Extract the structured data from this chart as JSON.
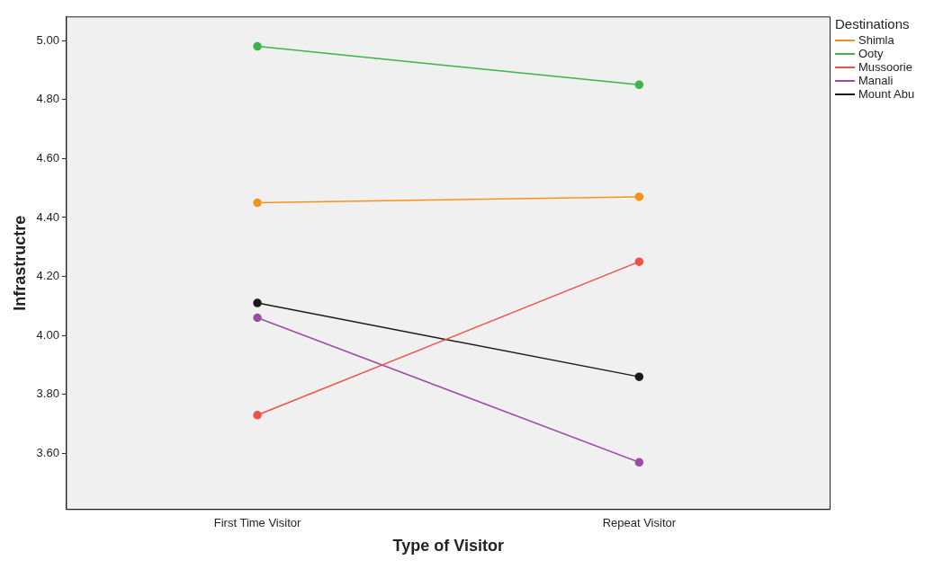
{
  "chart_data": {
    "type": "line",
    "xlabel": "Type of Visitor",
    "ylabel": "Infrastructre",
    "legend_title": "Destinations",
    "categories": [
      "First Time Visitor",
      "Repeat Visitor"
    ],
    "series": [
      {
        "name": "Shimla",
        "color": "#f5921e",
        "values": [
          4.45,
          4.47
        ]
      },
      {
        "name": "Ooty",
        "color": "#3cb44b",
        "values": [
          4.98,
          4.85
        ]
      },
      {
        "name": "Mussoorie",
        "color": "#f0504a",
        "values": [
          3.73,
          4.25
        ]
      },
      {
        "name": "Manali",
        "color": "#9b4da6",
        "values": [
          4.06,
          3.57
        ]
      },
      {
        "name": "Mount Abu",
        "color": "#1a1a1a",
        "values": [
          4.11,
          3.86
        ]
      }
    ],
    "ylim": [
      3.41,
      5.08
    ],
    "yticks": [
      {
        "value": 3.6,
        "label": "3.60"
      },
      {
        "value": 3.8,
        "label": "3.80"
      },
      {
        "value": 4.0,
        "label": "4.00"
      },
      {
        "value": 4.2,
        "label": "4.20"
      },
      {
        "value": 4.4,
        "label": "4.40"
      },
      {
        "value": 4.6,
        "label": "4.60"
      },
      {
        "value": 4.8,
        "label": "4.80"
      },
      {
        "value": 5.0,
        "label": "5.00"
      }
    ],
    "grid": false,
    "legend": "top right",
    "marker": "circle",
    "line_style": "solid"
  }
}
